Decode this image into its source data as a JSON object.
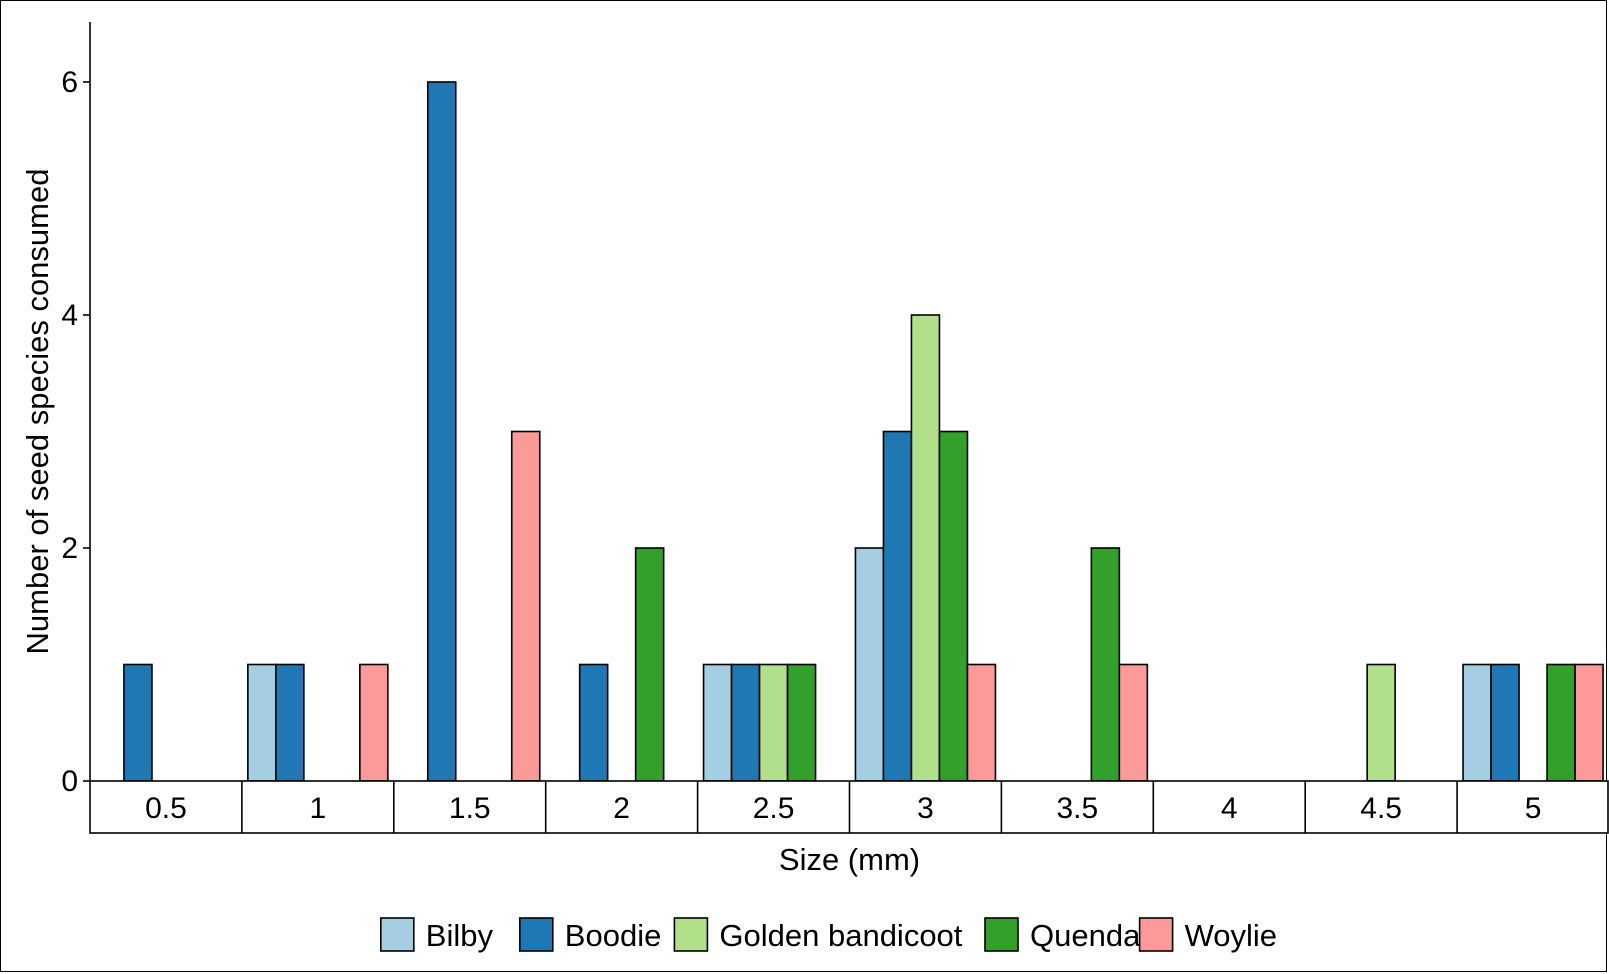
{
  "chart_data": {
    "type": "bar",
    "xlabel": "Size (mm)",
    "ylabel": "Number of seed species consumed",
    "ylim": [
      0,
      6.5
    ],
    "yticks": [
      0,
      2,
      4,
      6
    ],
    "categories": [
      "0.5",
      "1",
      "1.5",
      "2",
      "2.5",
      "3",
      "3.5",
      "4",
      "4.5",
      "5"
    ],
    "series": [
      {
        "name": "Bilby",
        "color": "#a6cee3",
        "values": [
          0,
          1,
          0,
          0,
          1,
          2,
          0,
          0,
          0,
          1
        ]
      },
      {
        "name": "Boodie",
        "color": "#1f78b4",
        "values": [
          1,
          1,
          6,
          1,
          1,
          3,
          0,
          0,
          0,
          1
        ]
      },
      {
        "name": "Golden bandicoot",
        "color": "#b2df8a",
        "values": [
          0,
          0,
          0,
          0,
          1,
          4,
          0,
          0,
          1,
          0
        ]
      },
      {
        "name": "Quenda",
        "color": "#33a02c",
        "values": [
          0,
          0,
          0,
          2,
          1,
          3,
          2,
          0,
          0,
          1
        ]
      },
      {
        "name": "Woylie",
        "color": "#fb9a99",
        "values": [
          0,
          1,
          3,
          0,
          0,
          1,
          1,
          0,
          0,
          1
        ]
      }
    ],
    "grid": false,
    "legend": "bottom"
  }
}
